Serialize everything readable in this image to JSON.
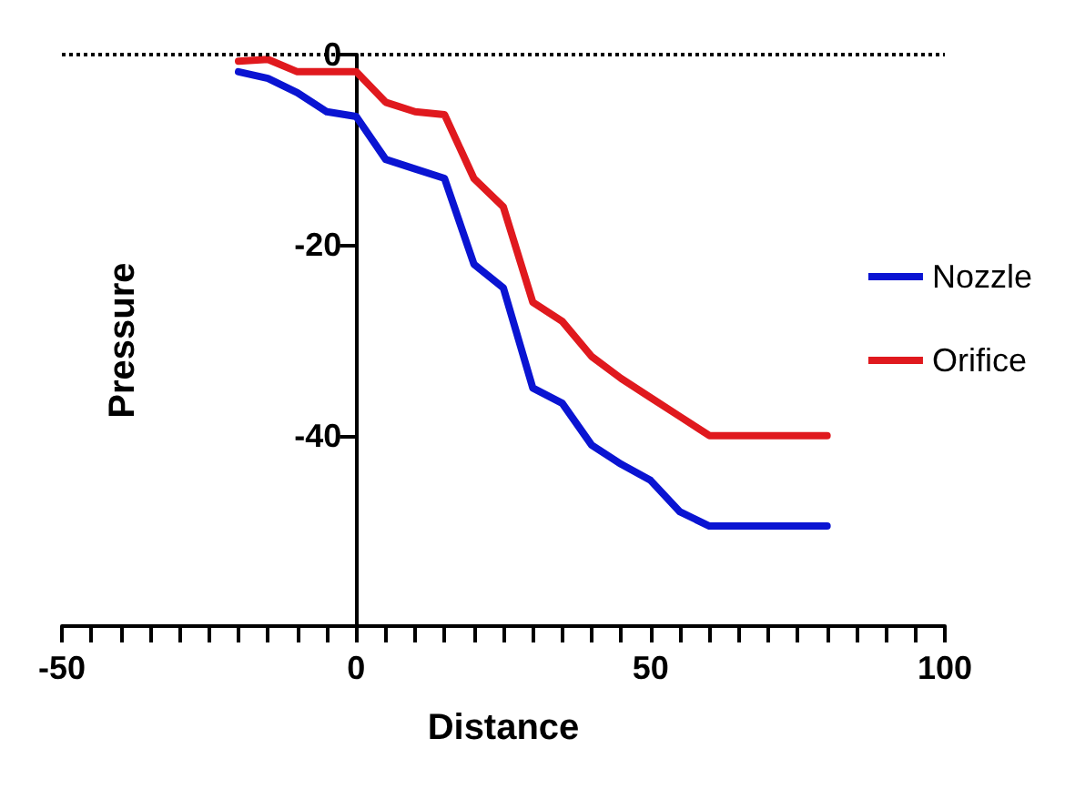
{
  "chart_data": {
    "type": "line",
    "xlabel": "Distance",
    "ylabel": "Pressure",
    "x": [
      -20,
      -15,
      -10,
      -5,
      0,
      5,
      10,
      15,
      20,
      25,
      30,
      35,
      40,
      45,
      50,
      55,
      60,
      65,
      70,
      75,
      80
    ],
    "series": [
      {
        "name": "Nozzle",
        "color": "#0a14d2",
        "values": [
          -1.8,
          -2.5,
          -4,
          -6,
          -6.5,
          -11,
          -12,
          -13,
          -22,
          -24.5,
          -35,
          -36.6,
          -41,
          -43,
          -44.7,
          -48,
          -49.5,
          -49.5,
          -49.5,
          -49.5,
          -49.5
        ]
      },
      {
        "name": "Orifice",
        "color": "#e0191e",
        "values": [
          -0.7,
          -0.5,
          -1.8,
          -1.8,
          -1.8,
          -5,
          -6,
          -6.3,
          -13,
          -16,
          -26,
          -28,
          -31.7,
          -34,
          -36,
          -38,
          -40,
          -40,
          -40,
          -40,
          -40
        ]
      }
    ],
    "xlim": [
      -50,
      100
    ],
    "xticks": [
      -50,
      {
        "value": -45,
        "label": null
      },
      {
        "value": -40,
        "label": null
      },
      {
        "value": -35,
        "label": null
      },
      {
        "value": -30,
        "label": null
      },
      {
        "value": -25,
        "label": null
      },
      {
        "value": -20,
        "label": null
      },
      {
        "value": -15,
        "label": null
      },
      {
        "value": -10,
        "label": null
      },
      {
        "value": -5,
        "label": null
      },
      0,
      {
        "value": 5,
        "label": null
      },
      {
        "value": 10,
        "label": null
      },
      {
        "value": 15,
        "label": null
      },
      {
        "value": 20,
        "label": null
      },
      {
        "value": 25,
        "label": null
      },
      {
        "value": 30,
        "label": null
      },
      {
        "value": 35,
        "label": null
      },
      {
        "value": 40,
        "label": null
      },
      {
        "value": 45,
        "label": null
      },
      50,
      {
        "value": 55,
        "label": null
      },
      {
        "value": 60,
        "label": null
      },
      {
        "value": 65,
        "label": null
      },
      {
        "value": 70,
        "label": null
      },
      {
        "value": 75,
        "label": null
      },
      {
        "value": 80,
        "label": null
      },
      {
        "value": 85,
        "label": null
      },
      {
        "value": 90,
        "label": null
      },
      {
        "value": 95,
        "label": null
      },
      100
    ],
    "ylim": [
      -60,
      0
    ],
    "yticks": [
      -40,
      -20,
      0
    ],
    "ref_lines": [
      {
        "axis": "y",
        "value": 0,
        "line_style": "dotted",
        "color": "#000000"
      }
    ],
    "grid": false,
    "legend": "right",
    "marker": "none",
    "line_style": "solid"
  }
}
